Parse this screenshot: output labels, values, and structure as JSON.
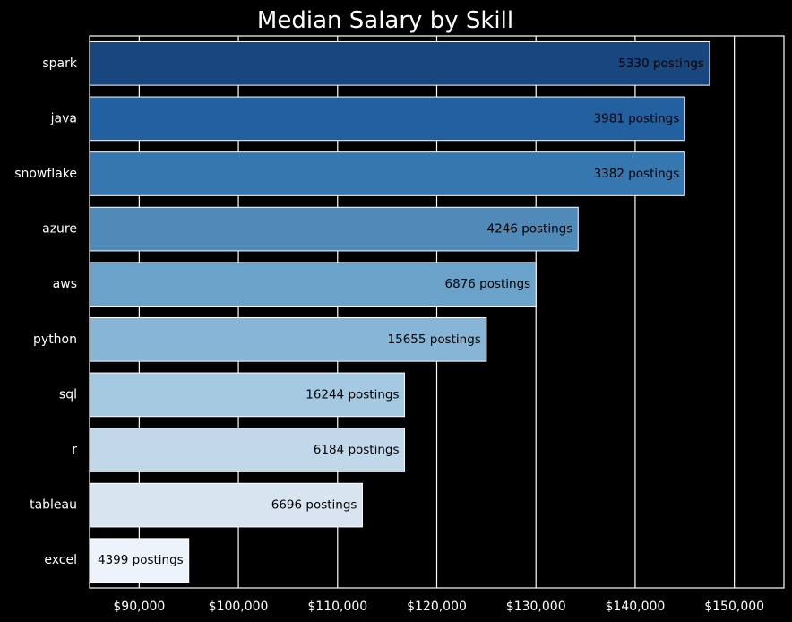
{
  "chart_data": {
    "type": "bar",
    "orientation": "horizontal",
    "title": "Median Salary by Skill",
    "xlabel": "",
    "ylabel": "",
    "xlim": [
      85000,
      155000
    ],
    "x_ticks": [
      90000,
      100000,
      110000,
      120000,
      130000,
      140000,
      150000
    ],
    "x_tick_labels": [
      "$90,000",
      "$100,000",
      "$110,000",
      "$120,000",
      "$130,000",
      "$140,000",
      "$150,000"
    ],
    "categories": [
      "spark",
      "java",
      "snowflake",
      "azure",
      "aws",
      "python",
      "sql",
      "r",
      "tableau",
      "excel"
    ],
    "values": [
      147500,
      145000,
      145000,
      134250,
      130000,
      125000,
      116750,
      116750,
      112500,
      95000
    ],
    "data_labels": [
      "5330 postings",
      "3981 postings",
      "3382 postings",
      "4246 postings",
      "6876 postings",
      "15655 postings",
      "16244 postings",
      "6184 postings",
      "6696 postings",
      "4399 postings"
    ],
    "colors": [
      "#18477f",
      "#22609f",
      "#3777b0",
      "#4f8ab9",
      "#6aa2c9",
      "#86b5d5",
      "#a4c9e0",
      "#c1d8ea",
      "#d8e5f1",
      "#ecf3fa"
    ],
    "grid": "vertical",
    "legend": "none",
    "background": "#000000",
    "foreground": "#ffffff"
  }
}
